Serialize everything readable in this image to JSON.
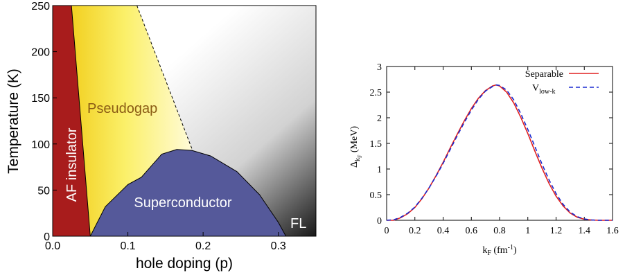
{
  "chart_data": [
    {
      "type": "area",
      "xlabel": "hole doping (p)",
      "ylabel": "Temperature (K)",
      "xlim": [
        0.0,
        0.35
      ],
      "ylim": [
        0,
        250
      ],
      "x_ticks": [
        "0.0",
        "0.1",
        "0.2",
        "0.3"
      ],
      "y_ticks": [
        "0",
        "50",
        "100",
        "150",
        "200",
        "250"
      ],
      "regions": [
        {
          "label": "AF insulator",
          "color": "#a81c1c",
          "boundary": [
            [
              0.0,
              0
            ],
            [
              0.0,
              250
            ],
            [
              0.025,
              250
            ],
            [
              0.05,
              0
            ]
          ]
        },
        {
          "label": "Pseudogap",
          "color": "#f4e23a",
          "boundary": [
            [
              0.025,
              250
            ],
            [
              0.112,
              250
            ],
            [
              0.185,
              95
            ],
            [
              0.05,
              0
            ]
          ]
        },
        {
          "label": "Superconductor",
          "color": "#55599a",
          "boundary": [
            [
              0.05,
              0
            ],
            [
              0.07,
              32
            ],
            [
              0.1,
              56
            ],
            [
              0.118,
              64
            ],
            [
              0.13,
              75
            ],
            [
              0.145,
              89
            ],
            [
              0.165,
              94
            ],
            [
              0.185,
              93
            ],
            [
              0.21,
              87
            ],
            [
              0.245,
              70
            ],
            [
              0.275,
              45
            ],
            [
              0.3,
              15
            ],
            [
              0.31,
              0
            ]
          ]
        },
        {
          "label": "FL",
          "color": "#3c3c3c"
        }
      ]
    },
    {
      "type": "line",
      "xlabel": "k",
      "xlabel_sub": "F",
      "xlabel_tail": " (fm",
      "xlabel_sup": "-1",
      "xlabel_close": ")",
      "ylabel": "Δ",
      "ylabel_sub": "k",
      "ylabel_subsub": "F",
      "ylabel_tail": " (MeV)",
      "xlim": [
        0,
        1.6
      ],
      "ylim": [
        0,
        3
      ],
      "x_ticks": [
        "0",
        "0.2",
        "0.4",
        "0.6",
        "0.8",
        "1",
        "1.2",
        "1.4",
        "1.6"
      ],
      "y_ticks": [
        "0",
        "0.5",
        "1",
        "1.5",
        "2",
        "2.5",
        "3"
      ],
      "legend_position": "top-right",
      "series": [
        {
          "name": "Separable",
          "color": "#e02020",
          "style": "solid",
          "x": [
            0.0,
            0.05,
            0.1,
            0.15,
            0.2,
            0.25,
            0.3,
            0.35,
            0.4,
            0.45,
            0.5,
            0.55,
            0.6,
            0.65,
            0.7,
            0.75,
            0.775,
            0.8,
            0.85,
            0.9,
            0.95,
            1.0,
            1.05,
            1.1,
            1.15,
            1.2,
            1.25,
            1.3,
            1.35,
            1.4,
            1.45,
            1.5,
            1.55,
            1.6
          ],
          "y": [
            0.0,
            0.0,
            0.05,
            0.13,
            0.25,
            0.42,
            0.63,
            0.87,
            1.13,
            1.41,
            1.68,
            1.94,
            2.18,
            2.38,
            2.53,
            2.62,
            2.64,
            2.62,
            2.5,
            2.29,
            2.01,
            1.69,
            1.35,
            1.02,
            0.72,
            0.47,
            0.28,
            0.14,
            0.06,
            0.02,
            0.005,
            0.0,
            0.0,
            0.0
          ]
        },
        {
          "name": "V",
          "name_sub": "low-k",
          "color": "#1a2ad0",
          "style": "dashed",
          "x": [
            0.0,
            0.05,
            0.1,
            0.15,
            0.2,
            0.25,
            0.3,
            0.35,
            0.4,
            0.45,
            0.5,
            0.55,
            0.6,
            0.65,
            0.7,
            0.75,
            0.78,
            0.8,
            0.85,
            0.9,
            0.95,
            1.0,
            1.05,
            1.1,
            1.15,
            1.2,
            1.25,
            1.3,
            1.35,
            1.4,
            1.45,
            1.5,
            1.55,
            1.6
          ],
          "y": [
            0.0,
            0.01,
            0.06,
            0.14,
            0.26,
            0.43,
            0.63,
            0.86,
            1.11,
            1.38,
            1.65,
            1.91,
            2.15,
            2.36,
            2.52,
            2.61,
            2.64,
            2.63,
            2.54,
            2.35,
            2.08,
            1.77,
            1.44,
            1.1,
            0.79,
            0.52,
            0.31,
            0.16,
            0.07,
            0.025,
            0.007,
            0.0,
            0.0,
            0.0
          ]
        }
      ]
    }
  ]
}
